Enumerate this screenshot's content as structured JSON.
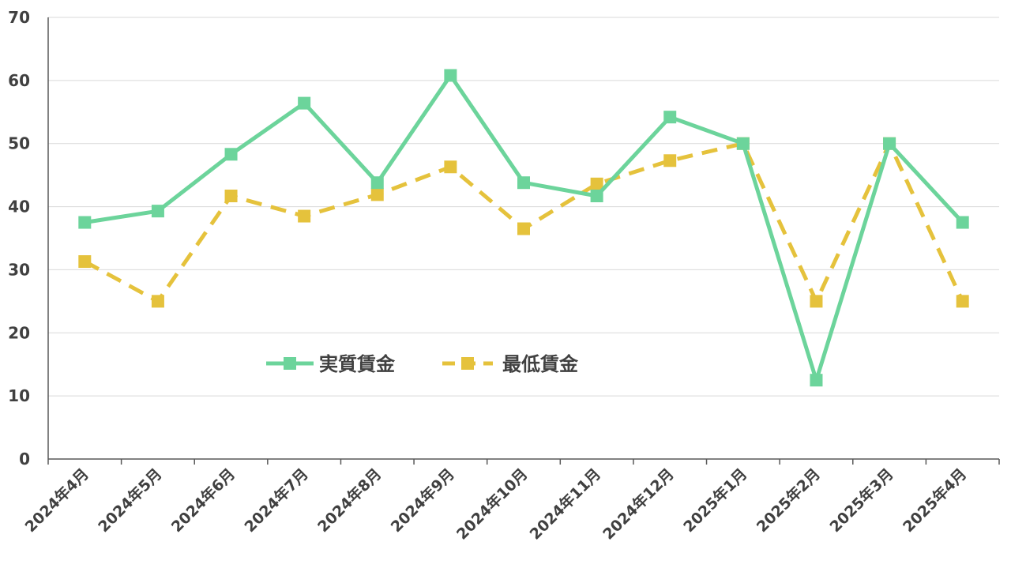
{
  "chart_data": {
    "type": "line",
    "categories": [
      "2024年4月",
      "2024年5月",
      "2024年6月",
      "2024年7月",
      "2024年8月",
      "2024年9月",
      "2024年10月",
      "2024年11月",
      "2024年12月",
      "2025年1月",
      "2025年2月",
      "2025年3月",
      "2025年4月"
    ],
    "series": [
      {
        "name": "実質賃金",
        "values": [
          37.5,
          39.3,
          48.3,
          56.4,
          43.8,
          60.8,
          43.8,
          41.7,
          54.2,
          50.0,
          12.5,
          50.0,
          37.5
        ],
        "color": "#6cd49b",
        "style": "solid",
        "marker": "square"
      },
      {
        "name": "最低賃金",
        "values": [
          31.3,
          25.0,
          41.7,
          38.5,
          41.9,
          46.3,
          36.5,
          43.6,
          47.3,
          50.0,
          25.0,
          50.0,
          25.0
        ],
        "color": "#e5c23c",
        "style": "dashed",
        "marker": "square"
      }
    ],
    "title": "",
    "xlabel": "",
    "ylabel": "",
    "ylim": [
      0,
      70
    ],
    "yticks": [
      "0",
      "10",
      "20",
      "30",
      "40",
      "50",
      "60",
      "70"
    ],
    "grid": true,
    "legend_position": "lower-left-inside"
  }
}
